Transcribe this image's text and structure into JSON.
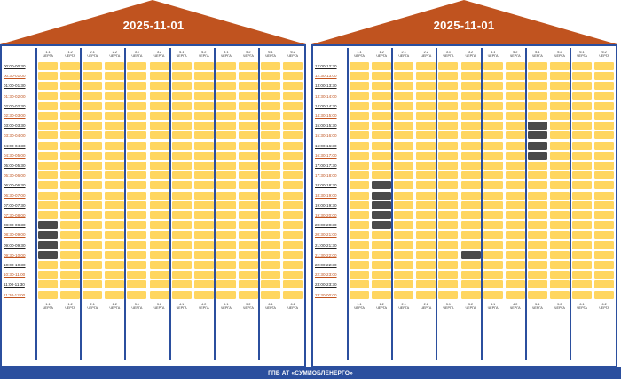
{
  "footer_text": "ГПВ АТ «СУМИОБЛЕНЕРГО»",
  "colors": {
    "power_on": "#ffd660",
    "power_off": "#4a4a4a",
    "frame": "#2b4f9e",
    "roof": "#c0531f"
  },
  "queue_word": "ЧЕРГА",
  "queues": [
    "1.1",
    "1.2",
    "2.1",
    "2.2",
    "3.1",
    "3.2",
    "4.1",
    "4.2",
    "5.1",
    "5.2",
    "6.1",
    "6.2"
  ],
  "panels": [
    {
      "date": "2025-11-01",
      "times": [
        "00:00-00:30",
        "00:30-01:00",
        "01:00-01:30",
        "01:30-02:00",
        "02:00-02:30",
        "02:30-03:00",
        "03:00-03:30",
        "03:30-04:00",
        "04:00-04:30",
        "04:30-05:00",
        "05:00-05:30",
        "05:30-06:00",
        "06:00-06:30",
        "06:30-07:00",
        "07:00-07:30",
        "07:30-08:00",
        "08:00-08:30",
        "08:30-09:00",
        "09:00-09:30",
        "09:30-10:00",
        "10:00-10:30",
        "10:30-11:00",
        "11:00-11:30",
        "11:30-12:00"
      ],
      "outages": {
        "1.1": [
          16,
          17,
          18,
          19
        ]
      }
    },
    {
      "date": "2025-11-01",
      "times": [
        "12:00-12:30",
        "12:30-13:00",
        "13:00-13:30",
        "13:30-14:00",
        "14:00-14:30",
        "14:30-15:00",
        "15:00-15:30",
        "15:30-16:00",
        "16:00-16:30",
        "16:30-17:00",
        "17:00-17:30",
        "17:30-18:00",
        "18:00-18:30",
        "18:30-19:00",
        "19:00-19:30",
        "19:30-20:00",
        "20:00-20:30",
        "20:30-21:00",
        "21:00-21:30",
        "21:30-22:00",
        "22:00-22:30",
        "22:30-23:00",
        "23:00-23:30",
        "23:30-00:00"
      ],
      "outages": {
        "1.2": [
          12,
          13,
          14,
          15,
          16
        ],
        "3.2": [
          19
        ],
        "5.1": [
          6,
          7,
          8,
          9
        ]
      }
    }
  ]
}
